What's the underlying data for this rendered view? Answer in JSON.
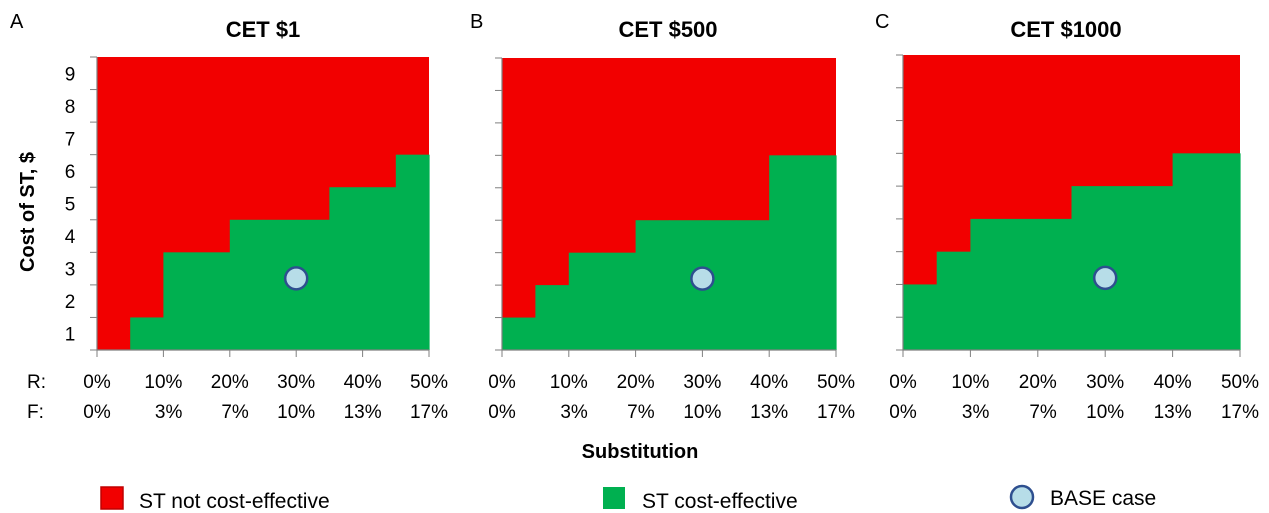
{
  "figure": {
    "y_axis_label": "Cost of ST, $",
    "x_axis_label": "Substitution",
    "row_labels": [
      "R:",
      "F:"
    ]
  },
  "chart_data": [
    {
      "type": "heatmap",
      "panel": "A",
      "title": "CET $1",
      "x_ticks_R": [
        "0%",
        "10%",
        "20%",
        "30%",
        "40%",
        "50%"
      ],
      "x_ticks_F": [
        "0%",
        "3%",
        "7%",
        "10%",
        "13%",
        "17%"
      ],
      "y_ticks": [
        "1",
        "2",
        "3",
        "4",
        "5",
        "6",
        "7",
        "8",
        "9"
      ],
      "xlim": [
        0,
        50
      ],
      "ylim": [
        0.5,
        9.5
      ],
      "x_step": 5,
      "threshold": [
        0.5,
        1.5,
        3.5,
        3.5,
        4.5,
        4.5,
        4.5,
        5.5,
        5.5,
        6.5
      ],
      "base_case": {
        "x": 30,
        "y": 2.7
      }
    },
    {
      "type": "heatmap",
      "panel": "B",
      "title": "CET $500",
      "x_ticks_R": [
        "0%",
        "10%",
        "20%",
        "30%",
        "40%",
        "50%"
      ],
      "x_ticks_F": [
        "0%",
        "3%",
        "7%",
        "10%",
        "13%",
        "17%"
      ],
      "y_ticks": [],
      "xlim": [
        0,
        50
      ],
      "ylim": [
        0.5,
        9.5
      ],
      "x_step": 5,
      "threshold": [
        1.5,
        2.5,
        3.5,
        3.5,
        4.5,
        4.5,
        4.5,
        4.5,
        6.5,
        6.5
      ],
      "base_case": {
        "x": 30,
        "y": 2.7
      }
    },
    {
      "type": "heatmap",
      "panel": "C",
      "title": "CET $1000",
      "x_ticks_R": [
        "0%",
        "10%",
        "20%",
        "30%",
        "40%",
        "50%"
      ],
      "x_ticks_F": [
        "0%",
        "3%",
        "7%",
        "10%",
        "13%",
        "17%"
      ],
      "y_ticks": [],
      "xlim": [
        0,
        50
      ],
      "ylim": [
        0.5,
        9.5
      ],
      "x_step": 5,
      "threshold": [
        2.5,
        3.5,
        4.5,
        4.5,
        4.5,
        5.5,
        5.5,
        5.5,
        6.5,
        6.5
      ],
      "base_case": {
        "x": 30,
        "y": 2.7
      }
    }
  ],
  "legend": [
    {
      "label": "ST not cost-effective",
      "color": "#f20000",
      "shape": "square"
    },
    {
      "label": "ST cost-effective",
      "color": "#00b050",
      "shape": "square"
    },
    {
      "label": "BASE case",
      "color": "#b7dde8",
      "shape": "circle"
    }
  ],
  "colors": {
    "not_cost_effective": "#f20000",
    "cost_effective": "#00b050",
    "base_case_fill": "#b7dde8",
    "base_case_stroke": "#2e4f8f"
  }
}
